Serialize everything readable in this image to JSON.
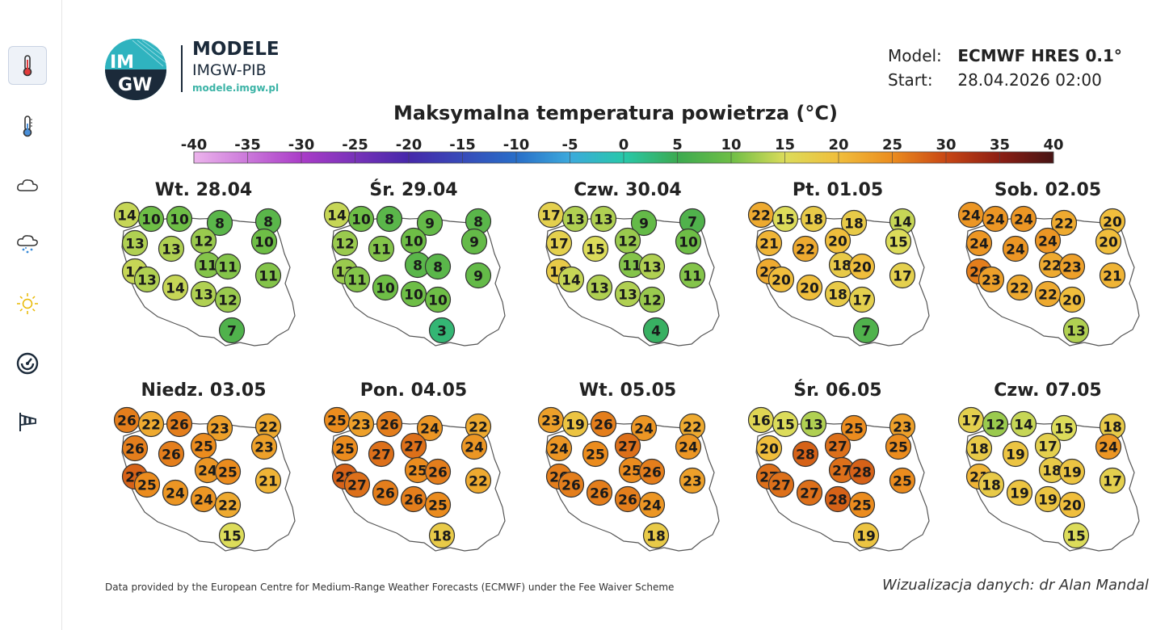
{
  "sidebar": {
    "items": [
      {
        "name": "temperature-max",
        "icon": "thermometer-icon",
        "active": true
      },
      {
        "name": "temperature",
        "icon": "thermometer-icon",
        "active": false
      },
      {
        "name": "clouds",
        "icon": "cloud-icon",
        "active": false
      },
      {
        "name": "precipitation",
        "icon": "cloud-snow-icon",
        "active": false
      },
      {
        "name": "sunshine",
        "icon": "sun-icon",
        "active": false
      },
      {
        "name": "pressure",
        "icon": "gauge-icon",
        "active": false
      },
      {
        "name": "wind",
        "icon": "windsock-icon",
        "active": false
      }
    ]
  },
  "logo": {
    "title": "MODELE",
    "subtitle": "IMGW-PIB",
    "url": "modele.imgw.pl",
    "mark_top": "IM",
    "mark_bottom": "GW"
  },
  "model": {
    "model_label": "Model:",
    "model_value": "ECMWF HRES 0.1°",
    "start_label": "Start:",
    "start_value": "28.04.2026 02:00"
  },
  "chart_data": {
    "type": "map",
    "title": "Maksymalna temperatura powietrza (°C)",
    "scale": {
      "ticks": [
        "-40",
        "-35",
        "-30",
        "-25",
        "-20",
        "-15",
        "-10",
        "-5",
        "0",
        "5",
        "10",
        "15",
        "20",
        "25",
        "30",
        "35",
        "40"
      ],
      "min": -40,
      "max": 40
    },
    "station_locations": [
      "w-coast",
      "nw",
      "n",
      "ne",
      "e",
      "w",
      "wc",
      "c",
      "ec",
      "sw",
      "sc",
      "se",
      "s",
      "sw2",
      "wc2",
      "c2",
      "e2",
      "s2"
    ],
    "days": [
      {
        "label": "Wt. 28.04",
        "values": [
          14,
          10,
          10,
          8,
          8,
          13,
          13,
          12,
          10,
          14,
          13,
          14,
          13,
          12,
          11,
          11,
          11,
          7
        ]
      },
      {
        "label": "Śr. 29.04",
        "values": [
          14,
          10,
          8,
          9,
          8,
          12,
          11,
          10,
          9,
          12,
          11,
          10,
          10,
          10,
          8,
          8,
          9,
          3
        ]
      },
      {
        "label": "Czw. 30.04",
        "values": [
          17,
          13,
          13,
          9,
          7,
          17,
          15,
          12,
          10,
          18,
          14,
          13,
          13,
          12,
          11,
          13,
          11,
          4
        ]
      },
      {
        "label": "Pt. 01.05",
        "values": [
          22,
          15,
          18,
          18,
          14,
          21,
          22,
          20,
          15,
          22,
          20,
          20,
          18,
          17,
          18,
          20,
          17,
          7
        ]
      },
      {
        "label": "Sob. 02.05",
        "values": [
          24,
          24,
          24,
          22,
          20,
          24,
          24,
          24,
          20,
          26,
          23,
          22,
          22,
          20,
          22,
          23,
          21,
          13
        ]
      },
      {
        "label": "Niedz. 03.05",
        "values": [
          26,
          22,
          26,
          23,
          22,
          26,
          26,
          25,
          23,
          28,
          25,
          24,
          24,
          22,
          24,
          25,
          21,
          15
        ]
      },
      {
        "label": "Pon. 04.05",
        "values": [
          25,
          23,
          26,
          24,
          22,
          25,
          27,
          27,
          24,
          28,
          27,
          26,
          26,
          25,
          25,
          26,
          22,
          18
        ]
      },
      {
        "label": "Wt. 05.05",
        "values": [
          23,
          19,
          26,
          24,
          22,
          24,
          25,
          27,
          24,
          26,
          26,
          26,
          26,
          24,
          25,
          26,
          23,
          18
        ]
      },
      {
        "label": "Śr. 06.05",
        "values": [
          16,
          15,
          13,
          25,
          23,
          20,
          28,
          27,
          25,
          27,
          27,
          27,
          28,
          25,
          27,
          28,
          25,
          19
        ]
      },
      {
        "label": "Czw. 07.05",
        "values": [
          17,
          12,
          14,
          15,
          18,
          18,
          19,
          17,
          24,
          21,
          18,
          19,
          19,
          20,
          18,
          19,
          17,
          15
        ]
      }
    ]
  },
  "footer": {
    "left": "Data provided by the European Centre for Medium-Range Weather Forecasts (ECMWF) under the Fee Waiver Scheme",
    "right": "Wizualizacja danych: dr Alan Mandal"
  }
}
